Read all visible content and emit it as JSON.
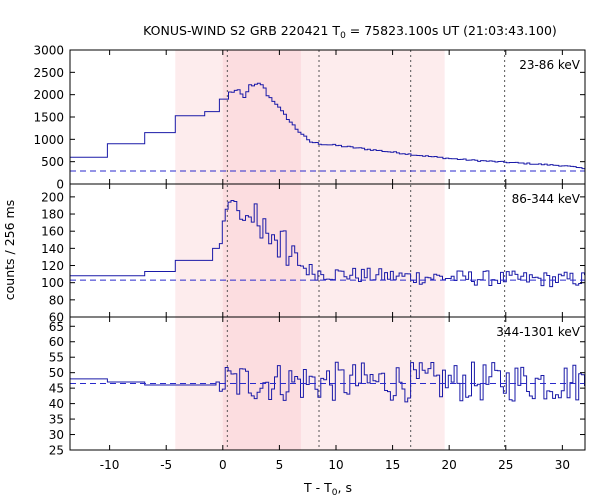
{
  "chart_data": {
    "type": "line",
    "title": {
      "prefix": "KONUS-WIND S2 GRB 220421 T",
      "sub": "0",
      "suffix": " = 75823.100s UT (21:03:43.100)"
    },
    "xlabel": {
      "prefix": "T - T",
      "sub": "0",
      "suffix": ", s"
    },
    "ylabel": "counts / 256 ms",
    "xlim": [
      -13.5,
      32
    ],
    "xticks": [
      -10,
      -5,
      0,
      5,
      10,
      15,
      20,
      25,
      30
    ],
    "shaded_intervals": [
      {
        "x0": -4.2,
        "x1": 19.6,
        "color": "#fdeced"
      },
      {
        "x0": 0.0,
        "x1": 6.9,
        "color": "#fcdde0"
      }
    ],
    "vertical_markers": [
      0.4,
      8.5,
      16.6,
      24.9
    ],
    "colors": {
      "line": "#1a1aa8",
      "background_line": "#2a2acc"
    },
    "panels": [
      {
        "band": "23-86 keV",
        "ylim": [
          0,
          3000
        ],
        "yticks": [
          0,
          500,
          1000,
          1500,
          2000,
          2500,
          3000
        ],
        "background": 290,
        "noise": 0,
        "segments": [
          {
            "x0": -13.5,
            "x1": -10.2,
            "y": 600
          },
          {
            "x0": -10.2,
            "x1": -6.9,
            "y": 900
          },
          {
            "x0": -6.9,
            "x1": -4.2,
            "y": 1150
          },
          {
            "x0": -4.2,
            "x1": -1.6,
            "y": 1530
          },
          {
            "x0": -1.6,
            "x1": -0.3,
            "y": 1620
          },
          {
            "x0": -0.3,
            "x1": 0.5,
            "y": 1900
          }
        ],
        "fine_points": [
          [
            0.5,
            2050
          ],
          [
            1.2,
            2100
          ],
          [
            1.8,
            1920
          ],
          [
            2.2,
            2200
          ],
          [
            2.6,
            2180
          ],
          [
            3.0,
            2240
          ],
          [
            3.4,
            2230
          ],
          [
            3.8,
            2000
          ],
          [
            4.2,
            1900
          ],
          [
            4.6,
            1800
          ],
          [
            5.0,
            1650
          ],
          [
            5.5,
            1500
          ],
          [
            6.0,
            1350
          ],
          [
            6.5,
            1200
          ],
          [
            7.0,
            1100
          ],
          [
            7.5,
            950
          ],
          [
            8.5,
            900
          ],
          [
            10,
            860
          ],
          [
            12,
            800
          ],
          [
            14,
            740
          ],
          [
            16,
            680
          ],
          [
            18,
            620
          ],
          [
            20,
            570
          ],
          [
            22,
            530
          ],
          [
            24,
            500
          ],
          [
            26,
            470
          ],
          [
            28,
            440
          ],
          [
            30,
            410
          ],
          [
            32,
            340
          ]
        ]
      },
      {
        "band": "86-344 keV",
        "ylim": [
          60,
          215
        ],
        "yticks": [
          60,
          80,
          100,
          120,
          140,
          160,
          180,
          200
        ],
        "background": 103,
        "noise": 9,
        "segments": [
          {
            "x0": -13.5,
            "x1": -6.9,
            "y": 108
          },
          {
            "x0": -6.9,
            "x1": -4.2,
            "y": 113
          },
          {
            "x0": -4.2,
            "x1": -0.9,
            "y": 126
          },
          {
            "x0": -0.9,
            "x1": -0.3,
            "y": 140
          }
        ],
        "fine_points": [
          [
            -0.3,
            150
          ],
          [
            0.0,
            175
          ],
          [
            0.4,
            190
          ],
          [
            1.0,
            195
          ],
          [
            1.6,
            160
          ],
          [
            2.0,
            185
          ],
          [
            2.4,
            170
          ],
          [
            2.8,
            190
          ],
          [
            3.2,
            150
          ],
          [
            3.6,
            175
          ],
          [
            4.0,
            145
          ],
          [
            4.4,
            165
          ],
          [
            4.8,
            135
          ],
          [
            5.2,
            170
          ],
          [
            5.6,
            115
          ],
          [
            6.0,
            140
          ],
          [
            6.5,
            125
          ],
          [
            7.0,
            118
          ],
          [
            8.0,
            112
          ],
          [
            10,
            110
          ],
          [
            13,
            108
          ],
          [
            16,
            107
          ],
          [
            20,
            106
          ],
          [
            24,
            105
          ],
          [
            28,
            104
          ],
          [
            32,
            104
          ]
        ]
      },
      {
        "band": "344-1301 keV",
        "ylim": [
          25,
          68
        ],
        "yticks": [
          25,
          30,
          35,
          40,
          45,
          50,
          55,
          60,
          65
        ],
        "background": 46.5,
        "noise": 6.5,
        "segments": [
          {
            "x0": -13.5,
            "x1": -10.2,
            "y": 48
          },
          {
            "x0": -10.2,
            "x1": -6.9,
            "y": 47
          },
          {
            "x0": -6.9,
            "x1": -4.2,
            "y": 46
          },
          {
            "x0": -4.2,
            "x1": -0.6,
            "y": 46
          },
          {
            "x0": -0.6,
            "x1": -0.3,
            "y": 47
          }
        ],
        "fine_points": [
          [
            -0.3,
            47
          ],
          [
            32,
            47
          ]
        ]
      }
    ]
  }
}
